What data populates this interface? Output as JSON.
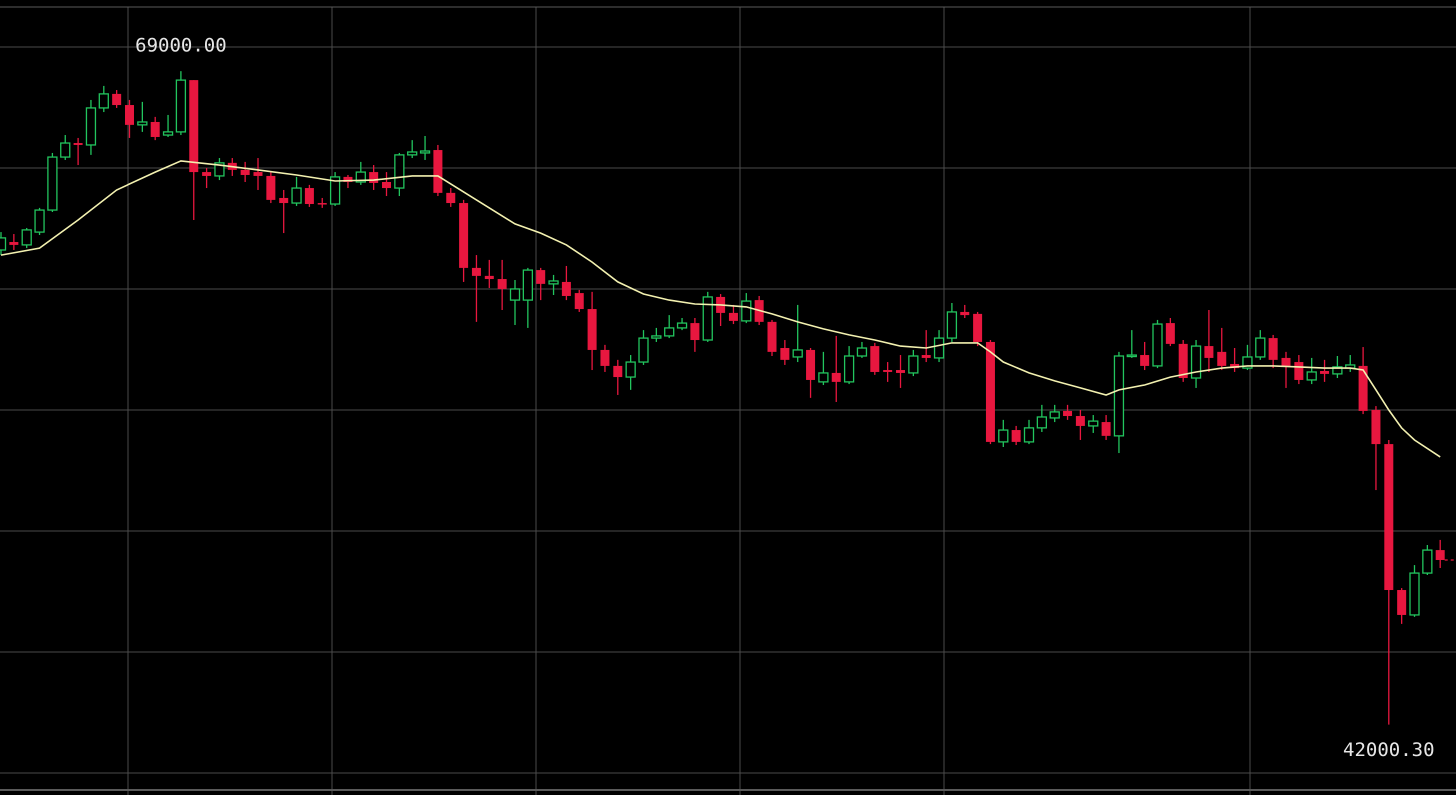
{
  "chart_data": {
    "type": "candlestick",
    "up_color": "#22c55e",
    "down_color": "#e8173f",
    "ylim": [
      39090,
      71940
    ],
    "yticks": [
      40000,
      45000,
      50000,
      55000,
      60000,
      65000,
      70000
    ],
    "grid": true,
    "annotations": [
      "69000.00",
      "42000.30"
    ],
    "open": [
      61610,
      61940,
      61820,
      62350,
      63260,
      65450,
      66030,
      65950,
      67480,
      68060,
      67600,
      66780,
      66900,
      66360,
      66490,
      68630,
      64830,
      64670,
      65210,
      64920,
      64830,
      64670,
      63760,
      63550,
      64170,
      63550,
      63510,
      64630,
      64420,
      64830,
      64420,
      64170,
      65540,
      65620,
      65740,
      63970,
      63550,
      60870,
      60540,
      60410,
      59540,
      59540,
      60780,
      60210,
      60290,
      59830,
      59170,
      57480,
      56820,
      56360,
      56980,
      57970,
      58060,
      58390,
      58590,
      57890,
      59670,
      59010,
      58680,
      59540,
      58640,
      57560,
      57190,
      57480,
      56160,
      56530,
      56160,
      57230,
      57640,
      56650,
      56650,
      56530,
      57270,
      57150,
      57970,
      59050,
      58970,
      57810,
      53680,
      54170,
      53680,
      54260,
      54670,
      54960,
      54750,
      54340,
      54500,
      53930,
      57230,
      57270,
      56820,
      58590,
      57730,
      56320,
      57640,
      57400,
      56900,
      56730,
      57190,
      57970,
      57150,
      56980,
      56240,
      56610,
      56490,
      56730,
      56820,
      55000,
      53590,
      47560,
      46530,
      48260,
      49210
    ],
    "high": [
      62350,
      62270,
      62520,
      63350,
      65620,
      66360,
      66240,
      67810,
      68390,
      68220,
      67810,
      67730,
      67110,
      67190,
      69000,
      68630,
      65000,
      65410,
      65410,
      65250,
      65410,
      64830,
      64090,
      64630,
      64300,
      63760,
      64830,
      64710,
      65250,
      65120,
      64830,
      65620,
      66150,
      66320,
      65950,
      64170,
      63680,
      61400,
      61200,
      61200,
      60370,
      60870,
      60870,
      60580,
      60950,
      59960,
      59880,
      57690,
      57070,
      57270,
      58300,
      58390,
      58920,
      58800,
      58800,
      59880,
      59790,
      59340,
      59830,
      59710,
      58720,
      57890,
      59340,
      57560,
      57400,
      58060,
      57640,
      57810,
      57770,
      56980,
      57270,
      57480,
      58300,
      58300,
      59420,
      59340,
      59050,
      57890,
      54590,
      54340,
      54590,
      55210,
      55210,
      55210,
      55000,
      54790,
      54790,
      57400,
      58300,
      57810,
      58720,
      58800,
      57890,
      57890,
      59130,
      58390,
      57560,
      57690,
      58300,
      58100,
      57400,
      57270,
      57150,
      57070,
      57230,
      57270,
      57600,
      55160,
      53760,
      47640,
      48590,
      49420,
      49630
    ],
    "low": [
      61400,
      61610,
      61690,
      62230,
      63180,
      65330,
      65120,
      65540,
      67310,
      67480,
      66240,
      66490,
      66150,
      66280,
      66360,
      62850,
      64170,
      64500,
      64670,
      64420,
      64090,
      63550,
      62310,
      63430,
      63390,
      63350,
      63430,
      64170,
      64300,
      64090,
      63840,
      63840,
      65410,
      65330,
      63840,
      63390,
      60290,
      58640,
      60040,
      59130,
      58510,
      58390,
      59540,
      59750,
      59540,
      59050,
      56650,
      56570,
      55620,
      55830,
      56860,
      57810,
      57970,
      58300,
      57400,
      57810,
      58470,
      58550,
      58590,
      58510,
      57230,
      56860,
      56980,
      55500,
      56030,
      55330,
      56070,
      57150,
      56450,
      56160,
      55910,
      56400,
      56980,
      56980,
      57810,
      58800,
      57640,
      53590,
      53470,
      53550,
      53590,
      54090,
      54500,
      54590,
      53760,
      54050,
      53760,
      53220,
      57150,
      56650,
      56730,
      57640,
      56160,
      55910,
      56570,
      56650,
      56570,
      56650,
      57070,
      56730,
      55910,
      56070,
      56070,
      56160,
      56320,
      56570,
      54830,
      51690,
      42000.3,
      46160,
      46450,
      48180,
      48470
    ],
    "close": [
      62110,
      61820,
      62440,
      63260,
      65450,
      66030,
      65950,
      67480,
      68060,
      67600,
      66780,
      66900,
      66280,
      66490,
      68630,
      64830,
      64670,
      65210,
      64920,
      64710,
      64670,
      63680,
      63550,
      64170,
      63510,
      63510,
      64630,
      64420,
      64830,
      64380,
      64170,
      65540,
      65660,
      65700,
      63970,
      63550,
      60870,
      60540,
      60410,
      60000,
      60000,
      60780,
      60210,
      60330,
      59710,
      59170,
      57480,
      56820,
      56360,
      56980,
      57970,
      58060,
      58390,
      58590,
      57890,
      59670,
      59010,
      58680,
      59500,
      58640,
      57400,
      57070,
      57480,
      56240,
      56530,
      56160,
      57230,
      57560,
      56570,
      56570,
      56530,
      57230,
      57150,
      57970,
      59050,
      58920,
      57810,
      53680,
      54170,
      53680,
      54260,
      54710,
      54920,
      54750,
      54340,
      54540,
      53930,
      57230,
      57270,
      56820,
      58550,
      57730,
      56320,
      57640,
      57150,
      56820,
      56730,
      57190,
      57970,
      57070,
      56820,
      56240,
      56570,
      56490,
      56780,
      56860,
      54960,
      53590,
      47560,
      46530,
      48260,
      49210,
      48800
    ],
    "ma": {
      "color": "#f3f1b0",
      "x": [
        0,
        3,
        6,
        9,
        12,
        14,
        17,
        20,
        23,
        26,
        29,
        32,
        34,
        36,
        38,
        40,
        42,
        44,
        46,
        48,
        50,
        52,
        54,
        56,
        58,
        60,
        62,
        64,
        66,
        68,
        70,
        72,
        74,
        76,
        77,
        78,
        80,
        82,
        84,
        86,
        87,
        89,
        91,
        93,
        95,
        97,
        99,
        101,
        103,
        105,
        106,
        107,
        108,
        109,
        110,
        112
      ],
      "values": [
        61400,
        61690,
        62850,
        64090,
        64830,
        65290,
        65120,
        64920,
        64710,
        64460,
        64500,
        64670,
        64670,
        64010,
        63350,
        62690,
        62310,
        61820,
        61110,
        60290,
        59790,
        59540,
        59380,
        59340,
        59260,
        58970,
        58640,
        58350,
        58100,
        57890,
        57640,
        57560,
        57770,
        57770,
        57400,
        56980,
        56530,
        56200,
        55910,
        55620,
        55830,
        56030,
        56360,
        56570,
        56730,
        56820,
        56820,
        56780,
        56730,
        56730,
        56650,
        55830,
        55000,
        54260,
        53760,
        53060
      ]
    }
  }
}
